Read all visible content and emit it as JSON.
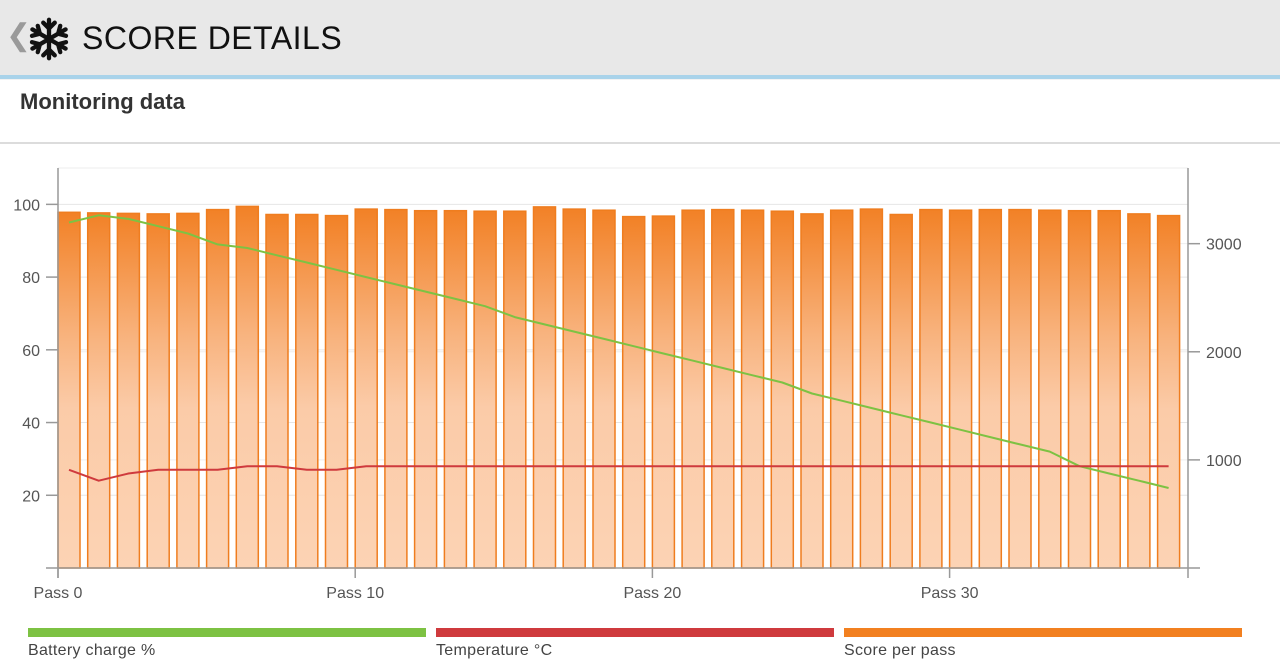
{
  "header": {
    "back_glyph": "❮",
    "title": "SCORE DETAILS",
    "logo_icon": "snowflake-icon"
  },
  "section": {
    "title": "Monitoring data"
  },
  "legend": [
    {
      "label": "Battery charge %",
      "color": "#7dc243"
    },
    {
      "label": "Temperature °C",
      "color": "#cf3a3d"
    },
    {
      "label": "Score per pass",
      "color": "#f28020"
    }
  ],
  "chart_data": {
    "type": "bar",
    "title": "Monitoring data",
    "x": {
      "min": 0,
      "max": 38,
      "ticks": [
        0,
        10,
        20,
        30
      ],
      "tick_labels": [
        "Pass 0",
        "Pass 10",
        "Pass 20",
        "Pass 30"
      ]
    },
    "y_left": {
      "min": 0,
      "max": 110,
      "ticks": [
        20,
        40,
        60,
        80,
        100
      ]
    },
    "y_right": {
      "min": 0,
      "max": 3700,
      "ticks": [
        1000,
        2000,
        3000
      ]
    },
    "series": [
      {
        "name": "Score per pass",
        "axis": "right",
        "type": "bar",
        "values": [
          3290,
          3285,
          3280,
          3275,
          3280,
          3315,
          3345,
          3270,
          3270,
          3260,
          3320,
          3315,
          3305,
          3305,
          3300,
          3300,
          3340,
          3320,
          3310,
          3250,
          3255,
          3310,
          3315,
          3310,
          3300,
          3275,
          3310,
          3320,
          3270,
          3315,
          3310,
          3315,
          3315,
          3310,
          3305,
          3305,
          3275,
          3260
        ]
      },
      {
        "name": "Battery charge %",
        "axis": "left",
        "type": "line",
        "values": [
          [
            0,
            95
          ],
          [
            1,
            97
          ],
          [
            2,
            96
          ],
          [
            3,
            94
          ],
          [
            4,
            92
          ],
          [
            5,
            89
          ],
          [
            6,
            88
          ],
          [
            7,
            86
          ],
          [
            8,
            84
          ],
          [
            9,
            82
          ],
          [
            10,
            80
          ],
          [
            11,
            78
          ],
          [
            12,
            76
          ],
          [
            13,
            74
          ],
          [
            14,
            72
          ],
          [
            15,
            69
          ],
          [
            16,
            67
          ],
          [
            17,
            65
          ],
          [
            18,
            63
          ],
          [
            19,
            61
          ],
          [
            20,
            59
          ],
          [
            21,
            57
          ],
          [
            22,
            55
          ],
          [
            23,
            53
          ],
          [
            24,
            51
          ],
          [
            25,
            48
          ],
          [
            26,
            46
          ],
          [
            27,
            44
          ],
          [
            28,
            42
          ],
          [
            29,
            40
          ],
          [
            30,
            38
          ],
          [
            31,
            36
          ],
          [
            32,
            34
          ],
          [
            33,
            32
          ],
          [
            34,
            28
          ],
          [
            35,
            26
          ],
          [
            36,
            24
          ],
          [
            37,
            22
          ]
        ]
      },
      {
        "name": "Temperature °C",
        "axis": "left",
        "type": "line",
        "values": [
          [
            0,
            27
          ],
          [
            1,
            24
          ],
          [
            2,
            26
          ],
          [
            3,
            27
          ],
          [
            4,
            27
          ],
          [
            5,
            27
          ],
          [
            6,
            28
          ],
          [
            7,
            28
          ],
          [
            8,
            27
          ],
          [
            9,
            27
          ],
          [
            10,
            28
          ],
          [
            11,
            28
          ],
          [
            12,
            28
          ],
          [
            13,
            28
          ],
          [
            14,
            28
          ],
          [
            15,
            28
          ],
          [
            16,
            28
          ],
          [
            17,
            28
          ],
          [
            18,
            28
          ],
          [
            19,
            28
          ],
          [
            20,
            28
          ],
          [
            21,
            28
          ],
          [
            22,
            28
          ],
          [
            23,
            28
          ],
          [
            24,
            28
          ],
          [
            25,
            28
          ],
          [
            26,
            28
          ],
          [
            27,
            28
          ],
          [
            28,
            28
          ],
          [
            29,
            28
          ],
          [
            30,
            28
          ],
          [
            31,
            28
          ],
          [
            32,
            28
          ],
          [
            33,
            28
          ],
          [
            34,
            28
          ],
          [
            35,
            28
          ],
          [
            36,
            28
          ],
          [
            37,
            28
          ]
        ]
      }
    ]
  }
}
